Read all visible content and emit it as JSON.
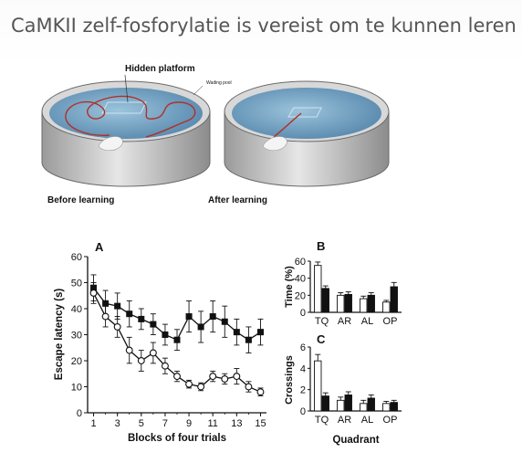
{
  "slide": {
    "title": "CaMKII zelf-fosforylatie is vereist om te kunnen leren"
  },
  "illustration": {
    "hidden_platform_label": "Hidden platform",
    "wading_pool_label": "Wading pool",
    "before_label": "Before learning",
    "after_label": "After learning",
    "water_color": "#5f93b8",
    "path_color": "#b03028"
  },
  "chart_data": [
    {
      "id": "A",
      "panel_label": "A",
      "type": "line",
      "xlabel": "Blocks of four trials",
      "ylabel": "Escape latency (s)",
      "x": [
        1,
        2,
        3,
        4,
        5,
        6,
        7,
        8,
        9,
        10,
        11,
        12,
        13,
        14,
        15
      ],
      "xticks": [
        "1",
        "3",
        "5",
        "7",
        "9",
        "11",
        "13",
        "15"
      ],
      "xtick_values": [
        1,
        3,
        5,
        7,
        9,
        11,
        13,
        15
      ],
      "yticks": [
        "0",
        "10",
        "20",
        "30",
        "40",
        "50",
        "60"
      ],
      "ylim": [
        0,
        60
      ],
      "xlim": [
        0.5,
        15.5
      ],
      "series": [
        {
          "marker": "filled-square",
          "values": [
            48,
            42,
            41,
            38,
            36,
            34,
            30,
            28,
            37,
            33,
            37,
            35,
            31,
            28,
            31
          ],
          "errors": [
            5,
            5,
            5,
            5,
            4,
            4,
            4,
            4,
            6,
            6,
            6,
            6,
            5,
            5,
            5
          ]
        },
        {
          "marker": "open-circle",
          "values": [
            46,
            37,
            33,
            24,
            20,
            23,
            18,
            14,
            11,
            10,
            14,
            13,
            14,
            10,
            8
          ],
          "errors": [
            4,
            4,
            4,
            5,
            4,
            4,
            3,
            2,
            1.5,
            1.5,
            2,
            2,
            3,
            2,
            1.5
          ]
        }
      ]
    },
    {
      "id": "B",
      "panel_label": "B",
      "type": "bar",
      "ylabel": "Time (%)",
      "categories": [
        "TQ",
        "AR",
        "AL",
        "OP"
      ],
      "yticks": [
        "0",
        "20",
        "40",
        "60"
      ],
      "ylim": [
        0,
        60
      ],
      "series": [
        {
          "fill": "open",
          "values": [
            55,
            20,
            16,
            12
          ],
          "errors": [
            4,
            3,
            3,
            2
          ]
        },
        {
          "fill": "filled",
          "values": [
            28,
            21,
            20,
            30
          ],
          "errors": [
            3,
            3,
            3,
            5
          ]
        }
      ]
    },
    {
      "id": "C",
      "panel_label": "C",
      "type": "bar",
      "xlabel": "Quadrant",
      "ylabel": "Crossings",
      "categories": [
        "TQ",
        "AR",
        "AL",
        "OP"
      ],
      "yticks": [
        "0",
        "2",
        "4",
        "6"
      ],
      "ylim": [
        0,
        6
      ],
      "series": [
        {
          "fill": "open",
          "values": [
            4.7,
            1.0,
            0.7,
            0.7
          ],
          "errors": [
            0.6,
            0.3,
            0.3,
            0.2
          ]
        },
        {
          "fill": "filled",
          "values": [
            1.4,
            1.5,
            1.2,
            0.8
          ],
          "errors": [
            0.3,
            0.3,
            0.3,
            0.2
          ]
        }
      ]
    }
  ]
}
